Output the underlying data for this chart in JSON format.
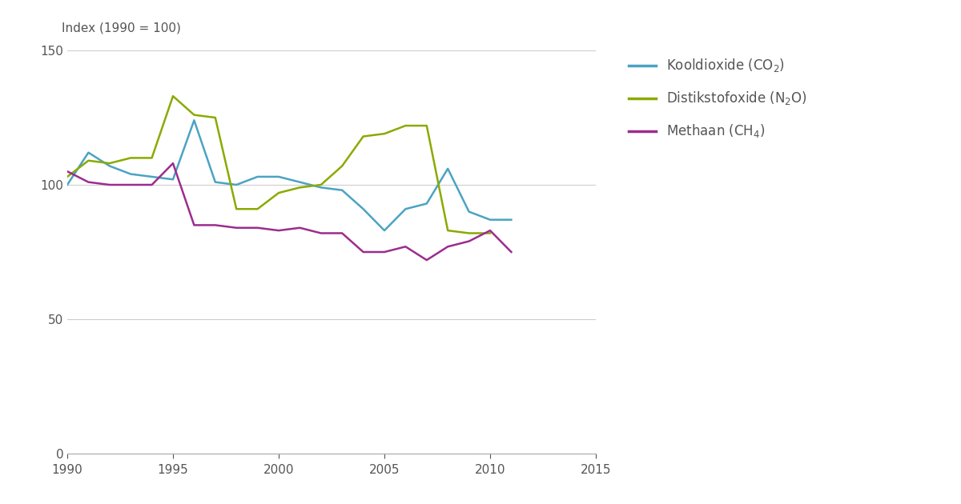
{
  "years": [
    1990,
    1991,
    1992,
    1993,
    1994,
    1995,
    1996,
    1997,
    1998,
    1999,
    2000,
    2001,
    2002,
    2003,
    2004,
    2005,
    2006,
    2007,
    2008,
    2009,
    2010,
    2011
  ],
  "co2": [
    100,
    112,
    107,
    104,
    103,
    102,
    124,
    101,
    100,
    103,
    103,
    101,
    99,
    98,
    91,
    83,
    91,
    93,
    106,
    90,
    87,
    87
  ],
  "n2o": [
    103,
    109,
    108,
    110,
    110,
    133,
    126,
    125,
    91,
    91,
    97,
    99,
    100,
    107,
    118,
    119,
    122,
    122,
    83,
    82,
    82,
    null
  ],
  "ch4": [
    105,
    101,
    100,
    100,
    100,
    108,
    85,
    85,
    84,
    84,
    83,
    84,
    82,
    82,
    75,
    75,
    77,
    72,
    77,
    79,
    83,
    75
  ],
  "co2_color": "#4ba3c3",
  "n2o_color": "#8aaa00",
  "ch4_color": "#9b2d8e",
  "background_color": "#ffffff",
  "grid_color": "#cccccc",
  "ylabel": "Index (1990 = 100)",
  "xlim": [
    1990,
    2015
  ],
  "ylim": [
    0,
    150
  ],
  "yticks": [
    0,
    50,
    100,
    150
  ],
  "xticks": [
    1990,
    1995,
    2000,
    2005,
    2010,
    2015
  ],
  "line_width": 1.8,
  "tick_color": "#555555",
  "tick_fontsize": 11,
  "ylabel_fontsize": 11,
  "legend_fontsize": 12,
  "legend_label_co2": "Kooldioxide (CO$_2$)",
  "legend_label_n2o": "Distikstofoxide (N$_2$O)",
  "legend_label_ch4": "Methaan (CH$_4$)"
}
